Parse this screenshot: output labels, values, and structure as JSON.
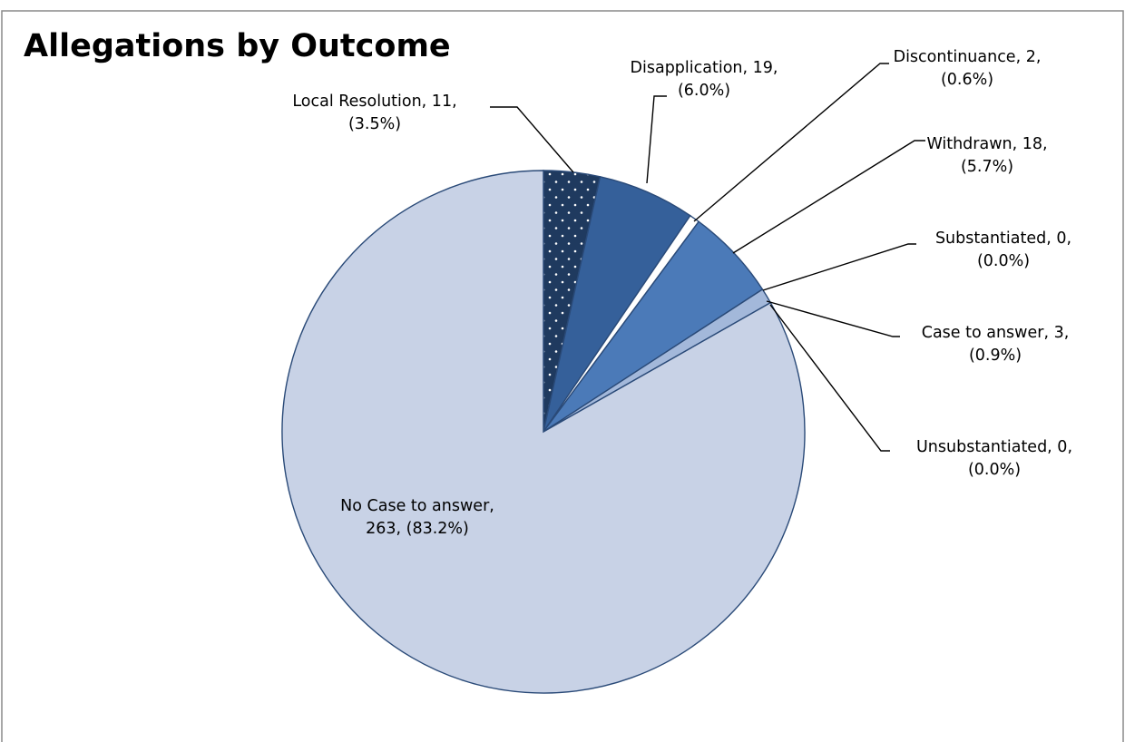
{
  "chart_data": {
    "type": "pie",
    "title": "Allegations by Outcome",
    "unit_note": "",
    "start_angle_deg": 0,
    "direction": "clockwise",
    "slices": [
      {
        "name": "Local Resolution",
        "value": 11,
        "percent": "3.5%",
        "color": "#1f3a5f",
        "pattern": "dots",
        "label_lines": [
          "Local Resolution, 11,",
          "(3.5%)"
        ]
      },
      {
        "name": "Disapplication",
        "value": 19,
        "percent": "6.0%",
        "color": "#35609a",
        "label_lines": [
          "Disapplication, 19,",
          "(6.0%)"
        ]
      },
      {
        "name": "Discontinuance",
        "value": 2,
        "percent": "0.6%",
        "color": "#ffffff",
        "label_lines": [
          "Discontinuance, 2,",
          "(0.6%)"
        ]
      },
      {
        "name": "Withdrawn",
        "value": 18,
        "percent": "5.7%",
        "color": "#4b7ab8",
        "label_lines": [
          "Withdrawn, 18,",
          "(5.7%)"
        ]
      },
      {
        "name": "Substantiated",
        "value": 0,
        "percent": "0.0%",
        "color": "#5d8ac4",
        "label_lines": [
          "Substantiated, 0,",
          "(0.0%)"
        ]
      },
      {
        "name": "Case to answer",
        "value": 3,
        "percent": "0.9%",
        "color": "#a3b8da",
        "label_lines": [
          "Case to answer, 3,",
          "(0.9%)"
        ]
      },
      {
        "name": "Unsubstantiated",
        "value": 0,
        "percent": "0.0%",
        "color": "#b8c8e2",
        "label_lines": [
          "Unsubstantiated, 0,",
          "(0.0%)"
        ]
      },
      {
        "name": "No Case to answer",
        "value": 263,
        "percent": "83.2%",
        "color": "#c8d2e6",
        "label_lines": [
          "No Case to answer,",
          "263, (83.2%)"
        ]
      }
    ]
  }
}
